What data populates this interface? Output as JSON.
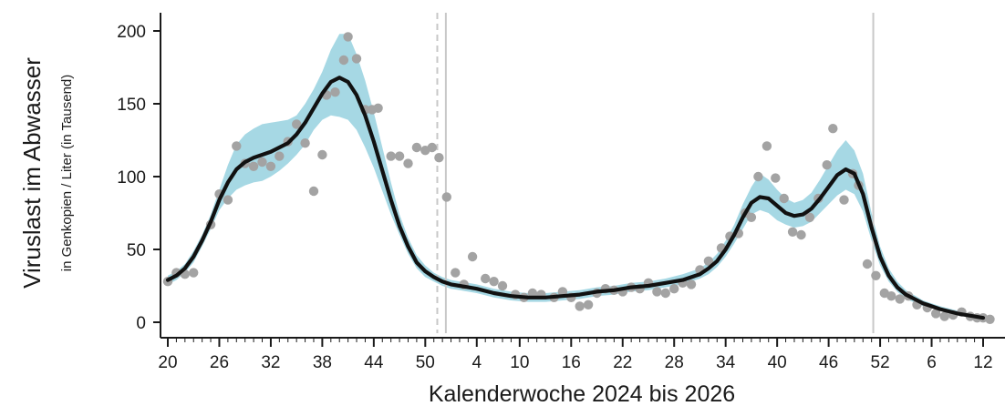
{
  "chart_data": {
    "type": "line",
    "xlabel": "Kalenderwoche 2024 bis 2026",
    "ylabel": "Viruslast im Abwasser",
    "ylabel_sub": "in Genkopien / Liter (in Tausend)",
    "ylim": [
      0,
      200
    ],
    "y_ticks": [
      0,
      50,
      100,
      150,
      200
    ],
    "x_axis": {
      "type": "weeks_from_2024_kw20",
      "min": 0,
      "max": 95,
      "tick_positions": [
        0,
        6,
        12,
        18,
        24,
        30,
        36,
        41,
        47,
        53,
        59,
        65,
        71,
        77,
        83,
        89,
        95
      ],
      "tick_labels": [
        "20",
        "26",
        "32",
        "38",
        "44",
        "50",
        "4",
        "10",
        "16",
        "22",
        "28",
        "34",
        "40",
        "46",
        "52",
        "6",
        "12"
      ]
    },
    "vertical_lines": [
      {
        "x": 31.4,
        "style": "dashed"
      },
      {
        "x": 32.4,
        "style": "solid"
      },
      {
        "x": 82.2,
        "style": "solid"
      }
    ],
    "grid": false,
    "legend": "none",
    "colors": {
      "line": "#111111",
      "band": "#a6d8e4",
      "points": "#a3a3a3",
      "vlines": "#c8c8c8",
      "axis": "#1a1a1a"
    },
    "smoothed_series": {
      "x": [
        0,
        1,
        2,
        3,
        4,
        5,
        6,
        7,
        8,
        9,
        10,
        11,
        12,
        13,
        14,
        15,
        16,
        17,
        18,
        19,
        20,
        21,
        22,
        23,
        24,
        25,
        26,
        27,
        28,
        29,
        30,
        31,
        32,
        33,
        34,
        35,
        36,
        38,
        40,
        42,
        44,
        46,
        48,
        50,
        52,
        54,
        56,
        58,
        60,
        62,
        63,
        64,
        65,
        66,
        67,
        68,
        69,
        70,
        71,
        72,
        73,
        74,
        75,
        76,
        77,
        78,
        79,
        80,
        81,
        82,
        83,
        84,
        85,
        86,
        88,
        90,
        92,
        94,
        95
      ],
      "y": [
        29,
        32,
        37,
        45,
        56,
        69,
        84,
        96,
        105,
        110,
        113,
        115,
        117,
        120,
        123,
        129,
        137,
        147,
        157,
        165,
        168,
        165,
        156,
        142,
        124,
        104,
        84,
        66,
        52,
        41,
        35,
        31,
        28,
        26,
        25,
        24,
        23,
        20,
        18,
        17,
        17,
        18,
        19,
        21,
        22,
        24,
        25,
        27,
        29,
        33,
        37,
        42,
        50,
        60,
        72,
        82,
        86,
        85,
        80,
        75,
        73,
        74,
        78,
        85,
        93,
        101,
        105,
        102,
        88,
        65,
        45,
        32,
        24,
        19,
        13,
        9,
        6,
        4,
        3
      ],
      "lower": [
        26,
        29,
        34,
        41,
        52,
        64,
        77,
        85,
        91,
        94,
        96,
        97,
        100,
        104,
        109,
        115,
        122,
        132,
        139,
        142,
        141,
        139,
        132,
        120,
        106,
        90,
        74,
        60,
        47,
        37,
        31,
        28,
        25,
        23,
        22,
        21,
        20,
        17,
        15,
        14,
        14,
        15,
        16,
        18,
        19,
        21,
        22,
        24,
        26,
        30,
        33,
        38,
        45,
        54,
        64,
        74,
        77,
        75,
        70,
        67,
        65,
        66,
        69,
        75,
        81,
        87,
        91,
        88,
        76,
        56,
        39,
        28,
        21,
        16,
        11,
        8,
        5,
        3,
        2
      ],
      "upper": [
        32,
        35,
        40,
        49,
        60,
        74,
        91,
        108,
        122,
        129,
        133,
        136,
        137,
        138,
        139,
        142,
        150,
        160,
        172,
        187,
        198,
        198,
        184,
        166,
        144,
        120,
        96,
        74,
        58,
        46,
        39,
        34,
        31,
        29,
        28,
        27,
        26,
        23,
        21,
        20,
        20,
        21,
        22,
        24,
        25,
        27,
        28,
        30,
        33,
        37,
        41,
        47,
        56,
        67,
        81,
        93,
        102,
        98,
        91,
        85,
        82,
        84,
        89,
        98,
        108,
        118,
        125,
        118,
        102,
        75,
        52,
        37,
        28,
        22,
        15,
        11,
        8,
        5,
        4
      ]
    },
    "measurements": [
      {
        "x": 0,
        "y": 28
      },
      {
        "x": 1,
        "y": 34
      },
      {
        "x": 2,
        "y": 33
      },
      {
        "x": 3,
        "y": 34
      },
      {
        "x": 5,
        "y": 67
      },
      {
        "x": 6,
        "y": 88
      },
      {
        "x": 7,
        "y": 84
      },
      {
        "x": 8,
        "y": 121
      },
      {
        "x": 9,
        "y": 109
      },
      {
        "x": 10,
        "y": 107
      },
      {
        "x": 11,
        "y": 110
      },
      {
        "x": 12,
        "y": 107
      },
      {
        "x": 13,
        "y": 114
      },
      {
        "x": 14,
        "y": 124
      },
      {
        "x": 15,
        "y": 136
      },
      {
        "x": 16,
        "y": 123
      },
      {
        "x": 17,
        "y": 90
      },
      {
        "x": 18,
        "y": 115
      },
      {
        "x": 18.5,
        "y": 156
      },
      {
        "x": 19.5,
        "y": 158
      },
      {
        "x": 20.5,
        "y": 180
      },
      {
        "x": 21,
        "y": 196
      },
      {
        "x": 22,
        "y": 181
      },
      {
        "x": 23,
        "y": 146
      },
      {
        "x": 23.8,
        "y": 146
      },
      {
        "x": 24.5,
        "y": 147
      },
      {
        "x": 26,
        "y": 114
      },
      {
        "x": 27,
        "y": 114
      },
      {
        "x": 28,
        "y": 109
      },
      {
        "x": 29,
        "y": 120
      },
      {
        "x": 30,
        "y": 118
      },
      {
        "x": 30.8,
        "y": 120
      },
      {
        "x": 31.6,
        "y": 113
      },
      {
        "x": 32.5,
        "y": 86
      },
      {
        "x": 33.5,
        "y": 34
      },
      {
        "x": 34.5,
        "y": 26
      },
      {
        "x": 35.5,
        "y": 45
      },
      {
        "x": 37,
        "y": 30
      },
      {
        "x": 38,
        "y": 28
      },
      {
        "x": 39,
        "y": 25
      },
      {
        "x": 40.5,
        "y": 19
      },
      {
        "x": 41.5,
        "y": 17
      },
      {
        "x": 42.5,
        "y": 20
      },
      {
        "x": 43.5,
        "y": 19
      },
      {
        "x": 45,
        "y": 17
      },
      {
        "x": 46,
        "y": 21
      },
      {
        "x": 47,
        "y": 17
      },
      {
        "x": 48,
        "y": 11
      },
      {
        "x": 49,
        "y": 12
      },
      {
        "x": 50,
        "y": 20
      },
      {
        "x": 51,
        "y": 23
      },
      {
        "x": 52,
        "y": 22
      },
      {
        "x": 53,
        "y": 21
      },
      {
        "x": 54,
        "y": 24
      },
      {
        "x": 55,
        "y": 23
      },
      {
        "x": 56,
        "y": 27
      },
      {
        "x": 57,
        "y": 21
      },
      {
        "x": 58,
        "y": 20
      },
      {
        "x": 59,
        "y": 23
      },
      {
        "x": 60,
        "y": 27
      },
      {
        "x": 61,
        "y": 26
      },
      {
        "x": 62,
        "y": 36
      },
      {
        "x": 63,
        "y": 42
      },
      {
        "x": 64.5,
        "y": 51
      },
      {
        "x": 65.5,
        "y": 59
      },
      {
        "x": 66.5,
        "y": 61
      },
      {
        "x": 67.3,
        "y": 75
      },
      {
        "x": 68,
        "y": 72
      },
      {
        "x": 68.8,
        "y": 100
      },
      {
        "x": 69.8,
        "y": 121
      },
      {
        "x": 70.8,
        "y": 99
      },
      {
        "x": 71.8,
        "y": 85
      },
      {
        "x": 72.8,
        "y": 62
      },
      {
        "x": 73.8,
        "y": 60
      },
      {
        "x": 74.8,
        "y": 72
      },
      {
        "x": 75.8,
        "y": 85
      },
      {
        "x": 76.8,
        "y": 108
      },
      {
        "x": 77.5,
        "y": 133
      },
      {
        "x": 78.8,
        "y": 84
      },
      {
        "x": 79.8,
        "y": 102
      },
      {
        "x": 80.5,
        "y": 94
      },
      {
        "x": 81.5,
        "y": 40
      },
      {
        "x": 82.5,
        "y": 32
      },
      {
        "x": 83.5,
        "y": 20
      },
      {
        "x": 84.3,
        "y": 18
      },
      {
        "x": 85.3,
        "y": 16
      },
      {
        "x": 86.3,
        "y": 18
      },
      {
        "x": 87.3,
        "y": 12
      },
      {
        "x": 88.5,
        "y": 10
      },
      {
        "x": 89.5,
        "y": 6
      },
      {
        "x": 90.5,
        "y": 4
      },
      {
        "x": 91.5,
        "y": 5
      },
      {
        "x": 92.5,
        "y": 7
      },
      {
        "x": 93.5,
        "y": 4
      },
      {
        "x": 94.3,
        "y": 3
      },
      {
        "x": 95,
        "y": 3
      },
      {
        "x": 95.8,
        "y": 2
      }
    ]
  }
}
